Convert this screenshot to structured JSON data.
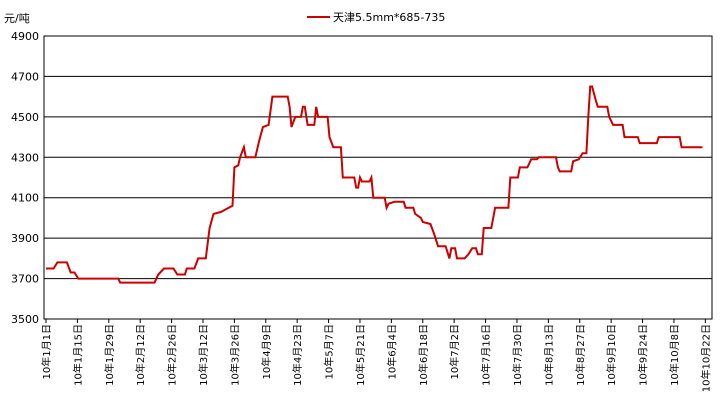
{
  "chart_data": {
    "type": "line",
    "unit_label": "元/吨",
    "series": [
      {
        "name": "天津5.5mm*685-735",
        "color": "#cc0000",
        "points": [
          [
            0,
            3750
          ],
          [
            0.8,
            3750
          ],
          [
            1.2,
            3780
          ],
          [
            2.2,
            3780
          ],
          [
            2.6,
            3730
          ],
          [
            3.0,
            3730
          ],
          [
            3.4,
            3700
          ],
          [
            7.6,
            3700
          ],
          [
            7.8,
            3680
          ],
          [
            11.4,
            3680
          ],
          [
            11.8,
            3720
          ],
          [
            12.4,
            3750
          ],
          [
            13.4,
            3750
          ],
          [
            13.8,
            3720
          ],
          [
            14.6,
            3720
          ],
          [
            14.8,
            3750
          ],
          [
            15.6,
            3750
          ],
          [
            16.0,
            3800
          ],
          [
            16.8,
            3800
          ],
          [
            17.2,
            3950
          ],
          [
            17.6,
            4020
          ],
          [
            18.4,
            4030
          ],
          [
            19.2,
            4050
          ],
          [
            19.6,
            4060
          ],
          [
            19.8,
            4250
          ],
          [
            20.2,
            4260
          ],
          [
            20.4,
            4300
          ],
          [
            20.8,
            4350
          ],
          [
            21.0,
            4300
          ],
          [
            22.0,
            4300
          ],
          [
            22.4,
            4380
          ],
          [
            22.8,
            4450
          ],
          [
            23.4,
            4460
          ],
          [
            23.8,
            4600
          ],
          [
            25.4,
            4600
          ],
          [
            25.6,
            4550
          ],
          [
            25.8,
            4450
          ],
          [
            26.2,
            4500
          ],
          [
            26.8,
            4500
          ],
          [
            27.0,
            4550
          ],
          [
            27.2,
            4550
          ],
          [
            27.5,
            4460
          ],
          [
            28.2,
            4460
          ],
          [
            28.4,
            4550
          ],
          [
            28.6,
            4500
          ],
          [
            29.6,
            4500
          ],
          [
            29.8,
            4400
          ],
          [
            30.2,
            4350
          ],
          [
            31.0,
            4350
          ],
          [
            31.2,
            4200
          ],
          [
            32.4,
            4200
          ],
          [
            32.6,
            4150
          ],
          [
            32.8,
            4150
          ],
          [
            33.0,
            4200
          ],
          [
            33.2,
            4180
          ],
          [
            34.0,
            4180
          ],
          [
            34.2,
            4200
          ],
          [
            34.4,
            4100
          ],
          [
            35.6,
            4100
          ],
          [
            35.8,
            4050
          ],
          [
            36.0,
            4070
          ],
          [
            36.6,
            4080
          ],
          [
            37.6,
            4080
          ],
          [
            37.8,
            4050
          ],
          [
            38.6,
            4050
          ],
          [
            38.8,
            4020
          ],
          [
            39.4,
            4000
          ],
          [
            39.6,
            3980
          ],
          [
            40.4,
            3970
          ],
          [
            40.8,
            3920
          ],
          [
            41.2,
            3860
          ],
          [
            42.0,
            3860
          ],
          [
            42.4,
            3800
          ],
          [
            42.6,
            3850
          ],
          [
            43.0,
            3850
          ],
          [
            43.2,
            3800
          ],
          [
            44.0,
            3800
          ],
          [
            44.4,
            3820
          ],
          [
            44.8,
            3850
          ],
          [
            45.2,
            3850
          ],
          [
            45.4,
            3820
          ],
          [
            45.8,
            3820
          ],
          [
            46.0,
            3950
          ],
          [
            46.8,
            3950
          ],
          [
            47.0,
            4000
          ],
          [
            47.2,
            4050
          ],
          [
            48.6,
            4050
          ],
          [
            48.8,
            4200
          ],
          [
            49.6,
            4200
          ],
          [
            49.8,
            4250
          ],
          [
            50.6,
            4250
          ],
          [
            51.0,
            4290
          ],
          [
            51.6,
            4290
          ],
          [
            51.8,
            4300
          ],
          [
            53.6,
            4300
          ],
          [
            53.8,
            4250
          ],
          [
            54.0,
            4230
          ],
          [
            55.2,
            4230
          ],
          [
            55.4,
            4280
          ],
          [
            56.0,
            4290
          ],
          [
            56.4,
            4320
          ],
          [
            56.8,
            4320
          ],
          [
            57.0,
            4500
          ],
          [
            57.2,
            4650
          ],
          [
            57.4,
            4650
          ],
          [
            57.8,
            4580
          ],
          [
            58.0,
            4550
          ],
          [
            59.0,
            4550
          ],
          [
            59.2,
            4500
          ],
          [
            59.6,
            4460
          ],
          [
            60.6,
            4460
          ],
          [
            60.8,
            4400
          ],
          [
            62.2,
            4400
          ],
          [
            62.4,
            4370
          ],
          [
            64.2,
            4370
          ],
          [
            64.4,
            4400
          ],
          [
            66.6,
            4400
          ],
          [
            66.8,
            4350
          ],
          [
            69.0,
            4350
          ]
        ]
      }
    ],
    "x_tick_labels": [
      "10年1月1日",
      "10年1月15日",
      "10年1月29日",
      "10年2月12日",
      "10年2月26日",
      "10年3月12日",
      "10年3月26日",
      "10年4月9日",
      "10年4月23日",
      "10年5月7日",
      "10年5月21日",
      "10年6月4日",
      "10年6月18日",
      "10年7月2日",
      "10年7月16日",
      "10年7月30日",
      "10年8月13日",
      "10年8月27日",
      "10年9月10日",
      "10年9月24日",
      "10年10月8日",
      "10年10月22日"
    ],
    "x_unit": "period index (10 weekday periods per label interval)",
    "x_tick_step": 3.3,
    "ylim": [
      3500,
      4900
    ],
    "y_ticks": [
      3500,
      3700,
      3900,
      4100,
      4300,
      4500,
      4700,
      4900
    ],
    "grid": "horizontal",
    "legend_position": "top-center"
  }
}
